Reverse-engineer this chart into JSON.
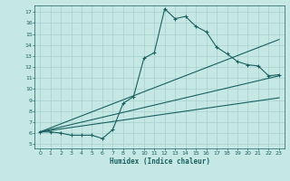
{
  "title": "",
  "xlabel": "Humidex (Indice chaleur)",
  "bg_color": "#c5e8e5",
  "grid_color": "#a8d0cc",
  "line_color": "#1a6060",
  "xlim": [
    -0.5,
    23.5
  ],
  "ylim": [
    4.6,
    17.6
  ],
  "xticks": [
    0,
    1,
    2,
    3,
    4,
    5,
    6,
    7,
    8,
    9,
    10,
    11,
    12,
    13,
    14,
    15,
    16,
    17,
    18,
    19,
    20,
    21,
    22,
    23
  ],
  "yticks": [
    5,
    6,
    7,
    8,
    9,
    10,
    11,
    12,
    13,
    14,
    15,
    16,
    17
  ],
  "main_x": [
    0,
    1,
    2,
    3,
    4,
    5,
    6,
    7,
    8,
    9,
    10,
    11,
    12,
    13,
    14,
    15,
    16,
    17,
    18,
    19,
    20,
    21,
    22,
    23
  ],
  "main_y": [
    6.1,
    6.1,
    6.0,
    5.8,
    5.8,
    5.8,
    5.5,
    6.3,
    8.7,
    9.3,
    12.8,
    13.3,
    17.3,
    16.4,
    16.6,
    15.7,
    15.2,
    13.8,
    13.2,
    12.5,
    12.2,
    12.1,
    11.2,
    11.3
  ],
  "line2_x": [
    0,
    23
  ],
  "line2_y": [
    6.1,
    11.2
  ],
  "line3_x": [
    0,
    23
  ],
  "line3_y": [
    6.1,
    14.5
  ],
  "line4_x": [
    0,
    23
  ],
  "line4_y": [
    6.1,
    9.2
  ]
}
